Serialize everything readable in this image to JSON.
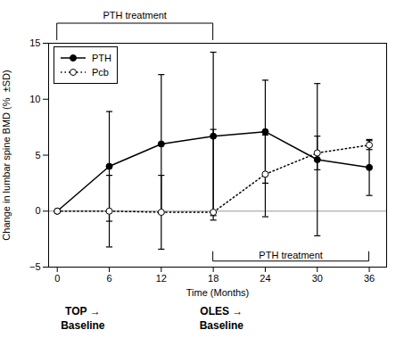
{
  "chart_data": {
    "type": "line",
    "x": [
      0,
      6,
      12,
      18,
      24,
      30,
      36
    ],
    "xlabel": "Time (Months)",
    "ylabel": "Change in lumbar spine BMD (%  ±SD)",
    "series": [
      {
        "name": "PTH",
        "color": "#000000",
        "marker": "circle",
        "line_style": "solid",
        "values": [
          0.0,
          4.0,
          6.0,
          6.7,
          7.1,
          4.6,
          3.9
        ],
        "error_upper": [
          0.0,
          4.9,
          6.2,
          7.5,
          4.6,
          6.8,
          2.5
        ],
        "error_lower": [
          0.0,
          4.9,
          6.2,
          7.5,
          4.6,
          6.8,
          2.5
        ]
      },
      {
        "name": "Pcb",
        "color": "#000000",
        "marker": "open_circle",
        "line_style": "dotted",
        "values": [
          0.0,
          0.0,
          -0.1,
          -0.1,
          3.3,
          5.2,
          5.9
        ],
        "error_upper": [
          0.0,
          3.2,
          3.3,
          7.4,
          3.5,
          1.5,
          0.4
        ],
        "error_lower": [
          0.0,
          3.2,
          3.3,
          0.3,
          3.8,
          1.5,
          0.4
        ]
      }
    ],
    "xlim": [
      -1,
      38
    ],
    "ylim": [
      -5,
      15
    ],
    "xticks": [
      0,
      6,
      12,
      18,
      24,
      30,
      36
    ],
    "yticks": [
      -5,
      0,
      5,
      10,
      15
    ],
    "legend": "upper left",
    "annotations": [
      {
        "y": 0,
        "color": "#999999"
      },
      {
        "text": "PTH treatment",
        "bracket": [
          0,
          18
        ]
      },
      {
        "text": "PTH treatment",
        "bracket": [
          18,
          36
        ],
        "y": -4.5
      },
      {
        "text": "TOP →",
        "x": 3
      },
      {
        "text": "Baseline",
        "x": 3
      },
      {
        "text": "OLES →",
        "x": 19
      },
      {
        "text": "Baseline",
        "x": 19
      }
    ]
  }
}
